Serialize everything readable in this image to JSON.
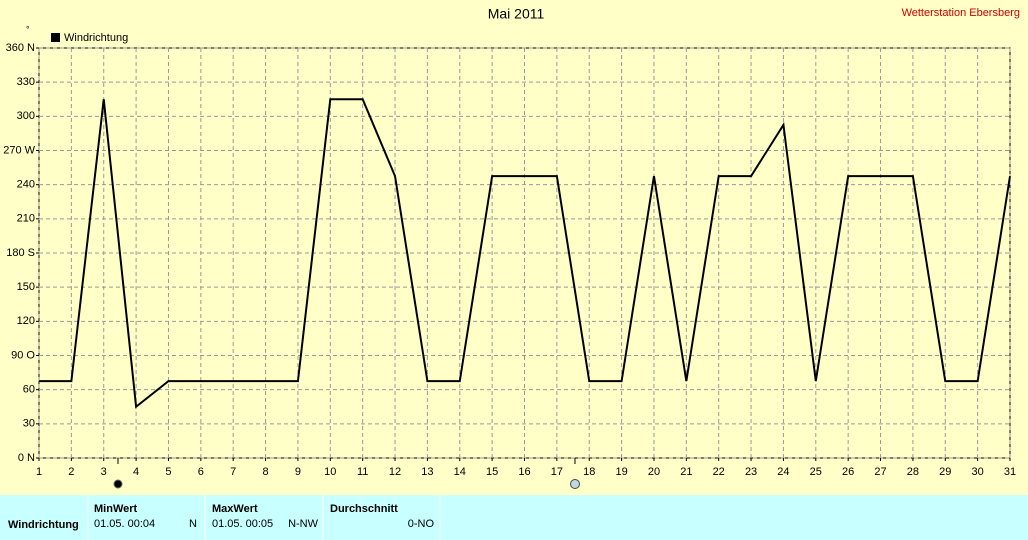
{
  "chart_data": {
    "type": "line",
    "title": "Mai 2011",
    "y_unit": "°",
    "x": [
      1,
      2,
      3,
      4,
      5,
      6,
      7,
      8,
      9,
      10,
      11,
      12,
      13,
      14,
      15,
      16,
      17,
      18,
      19,
      20,
      21,
      22,
      23,
      24,
      25,
      26,
      27,
      28,
      29,
      30,
      31
    ],
    "series": [
      {
        "name": "Windrichtung",
        "color": "#000000",
        "values": [
          67.5,
          67.5,
          315,
          45,
          67.5,
          67.5,
          67.5,
          67.5,
          67.5,
          315,
          315,
          247.5,
          67.5,
          67.5,
          247.5,
          247.5,
          247.5,
          67.5,
          67.5,
          247.5,
          67.5,
          247.5,
          247.5,
          292.5,
          67.5,
          247.5,
          247.5,
          247.5,
          67.5,
          67.5,
          247.5
        ]
      }
    ],
    "xlim": [
      1,
      31
    ],
    "xticks": [
      1,
      2,
      3,
      4,
      5,
      6,
      7,
      8,
      9,
      10,
      11,
      12,
      13,
      14,
      15,
      16,
      17,
      18,
      19,
      20,
      21,
      22,
      23,
      24,
      25,
      26,
      27,
      28,
      29,
      30,
      31
    ],
    "ylim": [
      0,
      360
    ],
    "yticks": [
      {
        "value": 0,
        "label": "0 N"
      },
      30,
      60,
      {
        "value": 90,
        "label": "90  O"
      },
      120,
      150,
      {
        "value": 180,
        "label": "180 S"
      },
      210,
      240,
      {
        "value": 270,
        "label": "270 W"
      },
      300,
      330,
      {
        "value": 360,
        "label": "360 N"
      }
    ],
    "grid": true
  },
  "station": "Wetterstation Ebersberg",
  "summary": {
    "headers": [
      "MinWert",
      "MaxWert",
      "Durchschnitt"
    ],
    "row": {
      "label": "Windrichtung",
      "min_time": "01.05.  00:04",
      "min_dir": "N",
      "max_time": "01.05.  00:05",
      "max_dir": "N-NW",
      "avg": "0-NO"
    }
  }
}
